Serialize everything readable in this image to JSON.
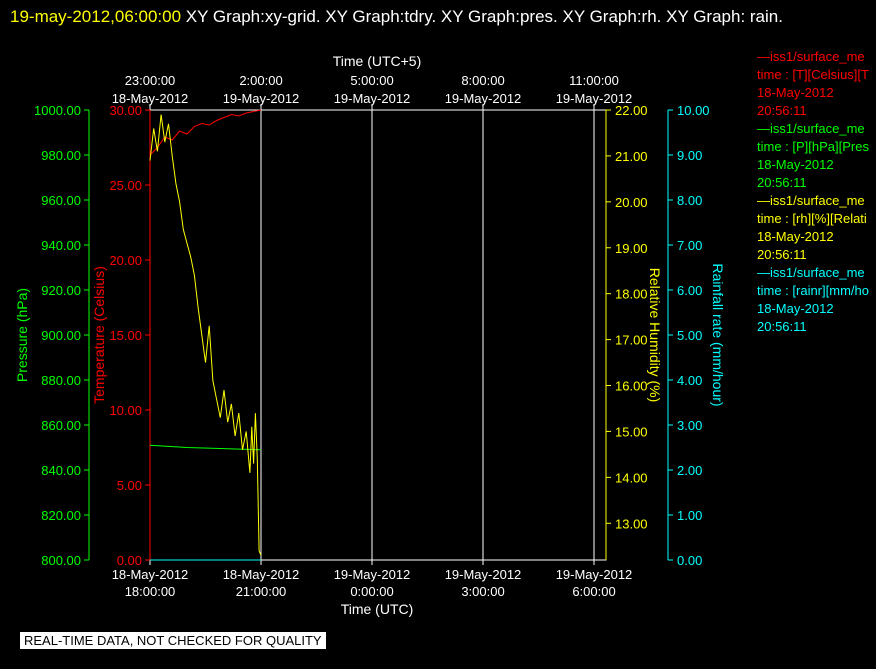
{
  "header": {
    "timestamp": "19-may-2012,06:00:00",
    "title_rest": "  XY Graph:xy-grid.  XY Graph:tdry.  XY Graph:pres.  XY Graph:rh.  XY Graph: rain."
  },
  "chart_data": {
    "type": "line",
    "x_axis_bottom": {
      "label": "Time (UTC)",
      "ticks": [
        {
          "date": "18-May-2012",
          "time": "18:00:00"
        },
        {
          "date": "18-May-2012",
          "time": "21:00:00"
        },
        {
          "date": "19-May-2012",
          "time": "0:00:00"
        },
        {
          "date": "19-May-2012",
          "time": "3:00:00"
        },
        {
          "date": "19-May-2012",
          "time": "6:00:00"
        }
      ],
      "range": [
        "18-May-2012 18:00",
        "19-May-2012 06:00"
      ]
    },
    "x_axis_top": {
      "label": "Time (UTC+5)",
      "ticks": [
        {
          "time": "23:00:00",
          "date": "18-May-2012"
        },
        {
          "time": "2:00:00",
          "date": "19-May-2012"
        },
        {
          "time": "5:00:00",
          "date": "19-May-2012"
        },
        {
          "time": "8:00:00",
          "date": "19-May-2012"
        },
        {
          "time": "11:00:00",
          "date": "19-May-2012"
        }
      ]
    },
    "axes": {
      "pressure": {
        "label": "Pressure (hPa)",
        "color": "#00ff00",
        "range": [
          800,
          1000
        ],
        "ticks": [
          "800.00",
          "820.00",
          "840.00",
          "860.00",
          "880.00",
          "900.00",
          "920.00",
          "940.00",
          "960.00",
          "980.00",
          "1000.00"
        ]
      },
      "temperature": {
        "label": "Temperature (Celsius)",
        "color": "#ff0000",
        "range": [
          0,
          30
        ],
        "ticks": [
          "0.00",
          "5.00",
          "10.00",
          "15.00",
          "20.00",
          "25.00",
          "30.00"
        ]
      },
      "humidity": {
        "label": "Relative Humidity (%)",
        "color": "#ffff00",
        "range": [
          12.2,
          22
        ],
        "ticks": [
          "13.00",
          "14.00",
          "15.00",
          "16.00",
          "17.00",
          "18.00",
          "19.00",
          "20.00",
          "21.00",
          "22.00"
        ]
      },
      "rain": {
        "label": "Rainfall rate (mm/hour)",
        "color": "#00ffff",
        "range": [
          0,
          10
        ],
        "ticks": [
          "0.00",
          "1.00",
          "2.00",
          "3.00",
          "4.00",
          "5.00",
          "6.00",
          "7.00",
          "8.00",
          "9.00",
          "10.00"
        ]
      }
    },
    "grid": true,
    "series": [
      {
        "name": "temperature",
        "color": "#ff0000",
        "axis": "temperature",
        "x_hours": [
          0.0,
          0.2,
          0.4,
          0.6,
          0.8,
          1.0,
          1.2,
          1.4,
          1.6,
          1.8,
          2.0,
          2.2,
          2.4,
          2.6,
          2.8,
          3.0
        ],
        "values": [
          27.0,
          27.5,
          28.2,
          28.0,
          28.6,
          28.4,
          28.9,
          29.1,
          29.0,
          29.3,
          29.5,
          29.7,
          29.6,
          29.8,
          29.9,
          30.0
        ]
      },
      {
        "name": "pressure",
        "color": "#00ff00",
        "axis": "pressure",
        "x_hours": [
          0.0,
          1.0,
          2.0,
          3.0
        ],
        "values": [
          851.0,
          850.0,
          849.5,
          849.0
        ]
      },
      {
        "name": "humidity",
        "color": "#ffff00",
        "axis": "humidity",
        "x_hours": [
          0.0,
          0.1,
          0.2,
          0.3,
          0.4,
          0.5,
          0.6,
          0.7,
          0.8,
          0.9,
          1.0,
          1.1,
          1.2,
          1.3,
          1.4,
          1.5,
          1.6,
          1.7,
          1.8,
          1.9,
          2.0,
          2.1,
          2.2,
          2.3,
          2.4,
          2.5,
          2.6,
          2.7,
          2.75,
          2.8,
          2.85,
          2.9,
          2.95,
          3.0
        ],
        "values": [
          20.9,
          21.6,
          21.1,
          21.9,
          21.3,
          21.7,
          21.0,
          20.4,
          20.0,
          19.4,
          19.1,
          18.8,
          18.4,
          17.7,
          17.1,
          16.5,
          17.3,
          16.1,
          15.7,
          15.3,
          15.9,
          15.2,
          15.6,
          14.9,
          15.4,
          14.6,
          15.0,
          14.1,
          15.1,
          14.3,
          15.4,
          14.4,
          12.4,
          12.3
        ]
      },
      {
        "name": "rainfall",
        "color": "#00ffff",
        "axis": "rain",
        "x_hours": [
          0.0,
          3.0
        ],
        "values": [
          0.0,
          0.0
        ]
      }
    ]
  },
  "legend": [
    {
      "line1": "—iss1/surface_me",
      "line2": "time : [T][Celsius][T",
      "line3": "18-May-2012",
      "line4": "20:56:11",
      "color": "#ff0000"
    },
    {
      "line1": "—iss1/surface_me",
      "line2": "time : [P][hPa][Pres",
      "line3": "18-May-2012",
      "line4": "20:56:11",
      "color": "#00ff00"
    },
    {
      "line1": "—iss1/surface_me",
      "line2": "time : [rh][%][Relati",
      "line3": "18-May-2012",
      "line4": "20:56:11",
      "color": "#ffff00"
    },
    {
      "line1": "—iss1/surface_me",
      "line2": "time : [rainr][mm/ho",
      "line3": "18-May-2012",
      "line4": "20:56:11",
      "color": "#00ffff"
    }
  ],
  "footer": {
    "notice": "REAL-TIME DATA, NOT CHECKED FOR QUALITY"
  }
}
